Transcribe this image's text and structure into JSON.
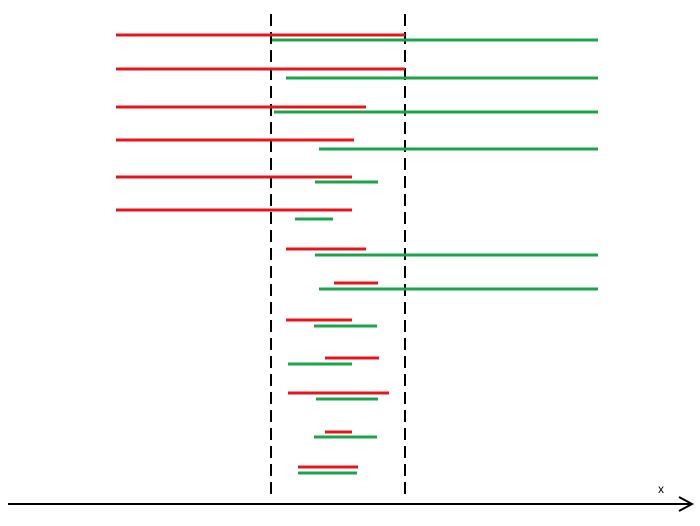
{
  "diagram": {
    "axis": {
      "label": "x"
    },
    "colors": {
      "red": "#e8141b",
      "green": "#1aa54a",
      "axis": "#000000",
      "guide": "#000000"
    },
    "pairs": [
      {
        "red": [
          116,
          405
        ],
        "green": [
          272,
          598
        ]
      },
      {
        "red": [
          116,
          405
        ],
        "green": [
          286,
          598
        ]
      },
      {
        "red": [
          116,
          366
        ],
        "green": [
          274,
          598
        ]
      },
      {
        "red": [
          116,
          354
        ],
        "green": [
          319,
          598
        ]
      },
      {
        "red": [
          116,
          352
        ],
        "green": [
          315,
          378
        ]
      },
      {
        "red": [
          116,
          352
        ],
        "green": [
          295,
          333
        ]
      },
      {
        "red": [
          286,
          366
        ],
        "green": [
          315,
          598
        ]
      },
      {
        "red": [
          334,
          378
        ],
        "green": [
          319,
          598
        ]
      },
      {
        "red": [
          286,
          352
        ],
        "green": [
          314,
          377
        ]
      },
      {
        "red": [
          325,
          379
        ],
        "green": [
          288,
          352
        ]
      },
      {
        "red": [
          288,
          389
        ],
        "green": [
          316,
          378
        ]
      },
      {
        "red": [
          325,
          352
        ],
        "green": [
          314,
          377
        ]
      },
      {
        "red": [
          298,
          358
        ],
        "green": [
          298,
          357
        ]
      }
    ]
  }
}
